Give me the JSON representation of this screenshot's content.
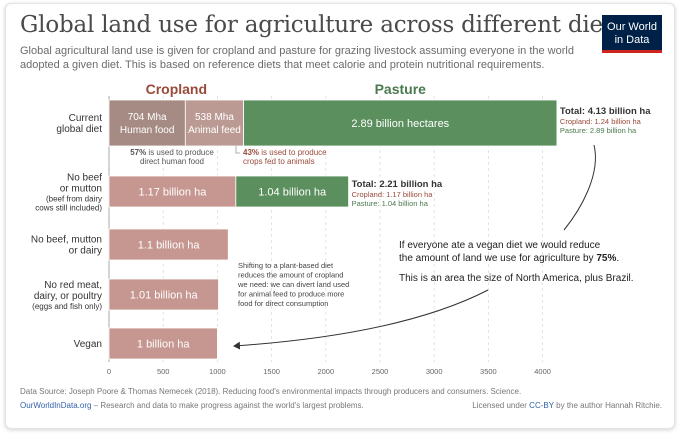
{
  "title": "Global land use for agriculture across different diets",
  "subtitle": "Global agricultural land use is given for cropland and pasture for grazing livestock assuming everyone in the world adopted a given diet. This is based on reference diets that meet calorie and protein nutritional requirements.",
  "logo": {
    "line1": "Our World",
    "line2": "in Data"
  },
  "colors": {
    "cropland_header": "#9a4a3a",
    "pasture_header": "#4b7a4f",
    "cropland_bar": "#c69690",
    "cropland_dark": "#a58b83",
    "cropland_light": "#bb9a94",
    "pasture_bar": "#5b8f5e"
  },
  "chart_data": {
    "type": "bar",
    "orientation": "horizontal",
    "stacked": true,
    "xlim": [
      0,
      4130
    ],
    "x_ticks": [
      0,
      500,
      1000,
      1500,
      2000,
      2500,
      3000,
      3500,
      4000
    ],
    "grid": true,
    "series_headers": [
      "Cropland",
      "Pasture"
    ],
    "rows": [
      {
        "label_lines": [
          "Current",
          "global diet"
        ],
        "segments": [
          {
            "series": "Cropland",
            "part": "Human food",
            "value": 704,
            "label": "704 Mha",
            "sublabel": "Human food"
          },
          {
            "series": "Cropland",
            "part": "Animal feed",
            "value": 538,
            "label": "538 Mha",
            "sublabel": "Animal feed"
          },
          {
            "series": "Pasture",
            "value": 2890,
            "label": "2.89 billion hectares"
          }
        ],
        "total": {
          "title": "Total: 4.13 billion ha",
          "cropland": "Cropland: 1.24 billion ha",
          "pasture": "Pasture: 2.89 billion ha"
        }
      },
      {
        "label_lines": [
          "No beef",
          "or mutton"
        ],
        "label_sub": [
          "(beef from dairy",
          "cows still included)"
        ],
        "segments": [
          {
            "series": "Cropland",
            "value": 1170,
            "label": "1.17 billion ha"
          },
          {
            "series": "Pasture",
            "value": 1040,
            "label": "1.04 billion ha"
          }
        ],
        "total": {
          "title": "Total: 2.21 billion ha",
          "cropland": "Cropland: 1.17 billion ha",
          "pasture": "Pasture: 1.04 billion ha"
        }
      },
      {
        "label_lines": [
          "No beef, mutton",
          "or dairy"
        ],
        "segments": [
          {
            "series": "Cropland",
            "value": 1100,
            "label": "1.1 billion ha"
          }
        ]
      },
      {
        "label_lines": [
          "No red meat,",
          "dairy, or poultry"
        ],
        "label_sub": [
          "(eggs and fish only)"
        ],
        "segments": [
          {
            "series": "Cropland",
            "value": 1010,
            "label": "1.01 billion ha"
          }
        ]
      },
      {
        "label_lines": [
          "Vegan"
        ],
        "segments": [
          {
            "series": "Cropland",
            "value": 1000,
            "label": "1 billion ha"
          }
        ]
      }
    ],
    "annotations": {
      "human_food": {
        "pct": "57%",
        "text_lines": [
          "is used to produce",
          "direct human food"
        ]
      },
      "animal_feed": {
        "pct": "43%",
        "text_lines": [
          "is used to produce",
          "crops fed to animals"
        ]
      },
      "shift_lines": [
        "Shifting to a plant-based diet",
        "reduces the amount of cropland",
        "we need: we can divert land used",
        "for animal feed to produce more",
        "food for direct consumption"
      ],
      "vegan_line1": "If everyone ate a vegan diet we would reduce",
      "vegan_line2_pre": "the amount of land we use for agriculture by ",
      "vegan_line2_bold": "75%",
      "vegan_line2_post": ".",
      "vegan_line3": "This is an area the size of North America, plus Brazil."
    }
  },
  "footer": {
    "source": "Data Source: Joseph Poore & Thomas Nemecek (2018). Reducing food's environmental impacts through producers and consumers. Science.",
    "owid_link": "OurWorldInData.org",
    "owid_text": " – Research and data to make progress against the world's largest problems.",
    "license_pre": "Licensed under ",
    "license_link": "CC-BY",
    "license_post": " by the author Hannah Ritchie."
  }
}
